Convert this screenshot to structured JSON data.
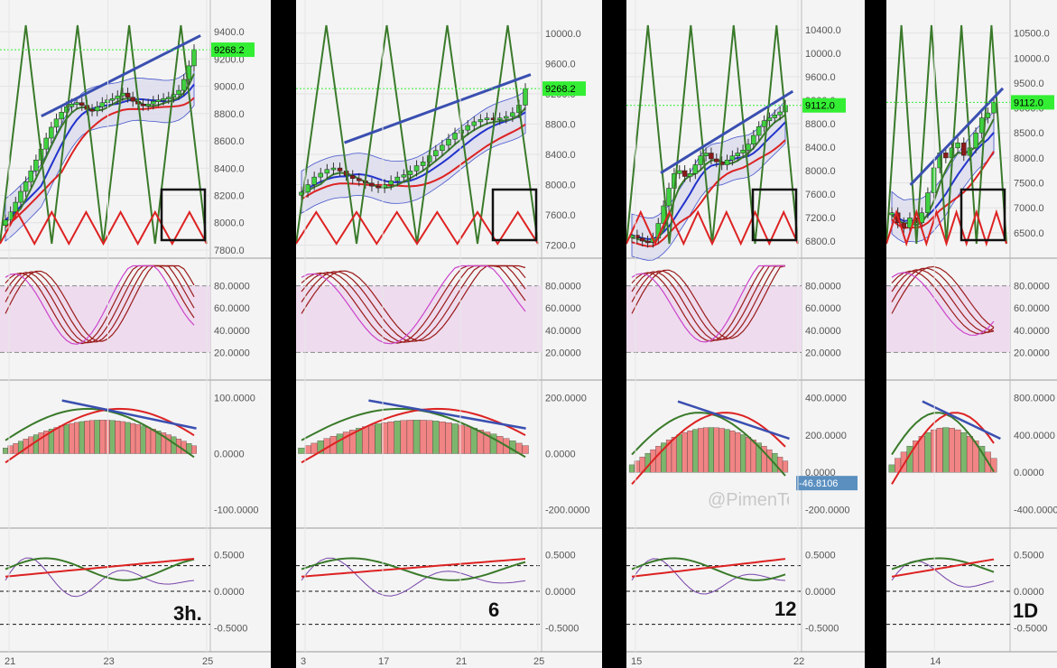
{
  "colors": {
    "up_candle": "#3fd13f",
    "down_candle": "#8b1a1a",
    "green_line": "#3a7a2a",
    "red_line": "#dd2222",
    "blue_line": "#2233cc",
    "trend_line": "#3a4fb0",
    "price_tag": "#33ee33",
    "osc_band": "#eedcee",
    "neg_tag": "#5a8fc0"
  },
  "watermark": "@PimenTechnical",
  "chart_data": [
    {
      "type": "candlestick",
      "timeframe_label": "3h.",
      "price_axis": [
        "9400.0",
        "9200.0",
        "9000.0",
        "8800.0",
        "8600.0",
        "8400.0",
        "8200.0",
        "8000.0",
        "7800.0"
      ],
      "price_range": [
        7780,
        9500
      ],
      "last_price": "9268.2",
      "stoch_axis": [
        "80.0000",
        "60.0000",
        "40.0000",
        "20.0000"
      ],
      "macd_axis": [
        "100.0000",
        "0.0000",
        "-100.0000"
      ],
      "corr_axis": [
        "0.5000",
        "0.0000",
        "-0.5000"
      ],
      "x_ticks": [
        "21",
        "23",
        "25"
      ],
      "closes": [
        8020,
        8080,
        8150,
        8230,
        8300,
        8380,
        8460,
        8540,
        8620,
        8700,
        8760,
        8810,
        8850,
        8870,
        8880,
        8860,
        8830,
        8820,
        8850,
        8880,
        8900,
        8910,
        8930,
        8950,
        8920,
        8890,
        8870,
        8860,
        8870,
        8890,
        8900,
        8910,
        8920,
        8940,
        8970,
        9050,
        9150,
        9268
      ]
    },
    {
      "type": "candlestick",
      "timeframe_label": "6",
      "price_axis": [
        "10000.0",
        "9600.0",
        "9200.0",
        "8800.0",
        "8400.0",
        "8000.0",
        "7600.0",
        "7200.0"
      ],
      "price_range": [
        7100,
        10200
      ],
      "last_price": "9268.2",
      "stoch_axis": [
        "80.0000",
        "60.0000",
        "40.0000",
        "20.0000"
      ],
      "macd_axis": [
        "200.0000",
        "0.0000",
        "-200.0000"
      ],
      "corr_axis": [
        "0.5000",
        "0.0000",
        "-0.5000"
      ],
      "x_ticks": [
        "3",
        "17",
        "21",
        "25"
      ],
      "closes": [
        7900,
        8000,
        8100,
        8150,
        8200,
        8220,
        8180,
        8120,
        8080,
        8050,
        8020,
        7980,
        7960,
        8000,
        8050,
        8100,
        8130,
        8180,
        8250,
        8300,
        8380,
        8450,
        8520,
        8600,
        8680,
        8720,
        8780,
        8830,
        8860,
        8880,
        8860,
        8880,
        8900,
        8950,
        9050,
        9268
      ]
    },
    {
      "type": "candlestick",
      "timeframe_label": "12",
      "price_axis": [
        "10400.0",
        "10000.0",
        "9600.0",
        "9200.0",
        "8800.0",
        "8400.0",
        "8000.0",
        "7600.0",
        "7200.0",
        "6800.0"
      ],
      "price_range": [
        6600,
        10600
      ],
      "last_price": "9112.0",
      "stoch_axis": [
        "80.0000",
        "60.0000",
        "40.0000",
        "20.0000"
      ],
      "macd_axis": [
        "400.0000",
        "200.0000",
        "0.0000",
        "-200.0000"
      ],
      "macd_last": "-46.8106",
      "corr_axis": [
        "0.5000",
        "0.0000",
        "-0.5000"
      ],
      "x_ticks": [
        "15",
        "22"
      ],
      "closes": [
        6900,
        6850,
        6800,
        6780,
        6850,
        7100,
        7400,
        7700,
        7950,
        8000,
        7900,
        7950,
        8100,
        8250,
        8300,
        8200,
        8150,
        8100,
        8180,
        8250,
        8300,
        8350,
        8450,
        8600,
        8750,
        8850,
        8900,
        8950,
        9000,
        9112
      ]
    },
    {
      "type": "candlestick",
      "timeframe_label": "1D",
      "price_axis": [
        "10500.0",
        "10000.0",
        "9500.0",
        "9000.0",
        "8500.0",
        "8000.0",
        "7500.0",
        "7000.0",
        "6500.0"
      ],
      "price_range": [
        6100,
        10800
      ],
      "last_price": "9112.0",
      "stoch_axis": [
        "80.0000",
        "60.0000",
        "40.0000",
        "20.0000"
      ],
      "macd_axis": [
        "800.0000",
        "400.0000",
        "0.0000",
        "-400.0000"
      ],
      "corr_axis": [
        "0.5000",
        "0.0000",
        "-0.5000"
      ],
      "x_ticks": [
        "14"
      ],
      "closes": [
        6900,
        6700,
        6600,
        6800,
        6700,
        6900,
        7300,
        7800,
        8100,
        8000,
        8200,
        8300,
        8050,
        8200,
        8500,
        8800,
        8900,
        9112
      ]
    }
  ]
}
